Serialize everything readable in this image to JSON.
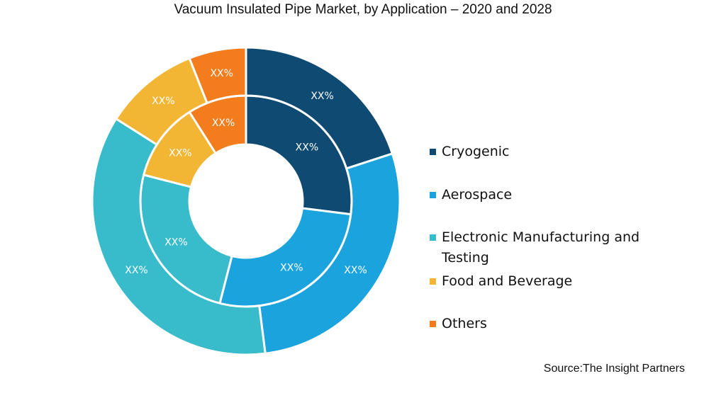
{
  "chart_data": {
    "type": "pie",
    "title": "Vacuum Insulated Pipe Market, by Application – 2020 and 2028",
    "rings": [
      {
        "name": "2020",
        "position": "inner",
        "values": [
          27,
          27,
          25,
          12,
          9
        ],
        "labels": [
          "XX%",
          "XX%",
          "XX%",
          "XX%",
          "XX%"
        ]
      },
      {
        "name": "2028",
        "position": "outer",
        "values": [
          20,
          28,
          36,
          10,
          6
        ],
        "labels": [
          "XX%",
          "XX%",
          "XX%",
          "XX%",
          "XX%"
        ]
      }
    ],
    "categories": [
      "Cryogenic",
      "Aerospace",
      "Electronic Manufacturing and Testing",
      "Food and Beverage",
      "Others"
    ],
    "colors": [
      "#0e4a72",
      "#1ba3dd",
      "#38bccc",
      "#f2b534",
      "#f37c1c"
    ],
    "legend": {
      "position": "right",
      "items": [
        {
          "label": "Cryogenic",
          "color": "#0e4a72"
        },
        {
          "label": "Aerospace",
          "color": "#1ba3dd"
        },
        {
          "label": "Electronic Manufacturing and Testing",
          "color": "#38bccc"
        },
        {
          "label": "Food and Beverage",
          "color": "#f2b534"
        },
        {
          "label": "Others",
          "color": "#f37c1c"
        }
      ]
    },
    "source": "Source:The Insight Partners"
  }
}
